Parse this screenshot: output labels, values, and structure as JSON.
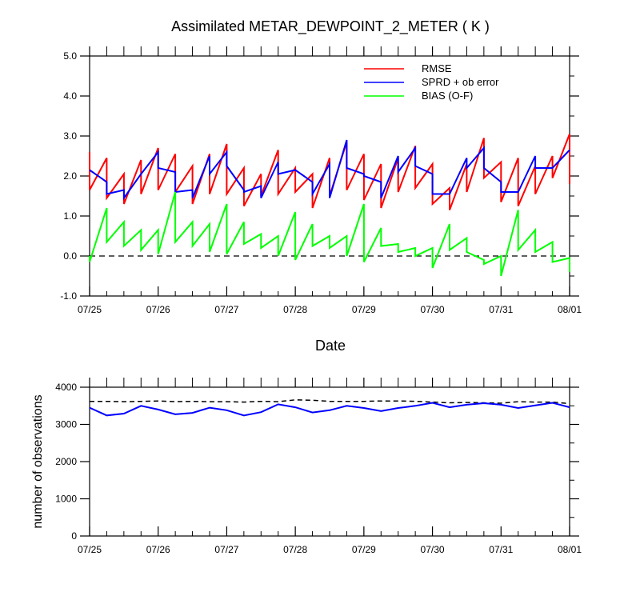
{
  "chart_data": [
    {
      "type": "line",
      "title": "Assimilated METAR_DEWPOINT_2_METER ( K )",
      "xlabel": "Date",
      "ylabel": "",
      "x_ticks": [
        "07/25",
        "07/26",
        "07/27",
        "07/28",
        "07/29",
        "07/30",
        "07/31",
        "08/01"
      ],
      "xlim": [
        0,
        7
      ],
      "ylim": [
        -1.0,
        5.0
      ],
      "y_ticks": [
        "-1.0",
        "0.0",
        "1.0",
        "2.0",
        "3.0",
        "4.0",
        "5.0"
      ],
      "legend_position": "top-right",
      "reference_line": 0.0,
      "x": [
        0.0,
        0.25,
        0.5,
        0.75,
        1.0,
        1.25,
        1.5,
        1.75,
        2.0,
        2.25,
        2.5,
        2.75,
        3.0,
        3.25,
        3.5,
        3.75,
        4.0,
        4.25,
        4.5,
        4.75,
        5.0,
        5.25,
        5.5,
        5.75,
        6.0,
        6.25,
        6.5,
        6.75,
        7.0
      ],
      "series": [
        {
          "name": "RMSE",
          "color": "#ff0000",
          "prior": [
            2.6,
            2.45,
            2.05,
            2.4,
            2.7,
            2.55,
            2.25,
            2.55,
            2.8,
            2.2,
            2.05,
            2.65,
            2.2,
            2.05,
            2.45,
            2.85,
            2.55,
            2.3,
            2.45,
            2.75,
            2.3,
            1.7,
            2.3,
            2.95,
            2.35,
            2.45,
            2.25,
            2.5,
            3.05
          ],
          "posterior": [
            1.65,
            1.45,
            1.3,
            1.55,
            1.65,
            1.6,
            1.3,
            1.55,
            1.55,
            1.25,
            1.5,
            1.55,
            1.6,
            1.2,
            1.5,
            1.65,
            1.4,
            1.2,
            1.6,
            1.7,
            1.3,
            1.15,
            1.6,
            1.95,
            1.35,
            1.25,
            1.55,
            1.95,
            1.8
          ]
        },
        {
          "name": "SPRD + ob error",
          "color": "#0000ff",
          "prior": [
            2.15,
            1.85,
            1.65,
            2.05,
            2.6,
            2.1,
            1.65,
            2.5,
            2.6,
            1.65,
            1.75,
            2.35,
            2.15,
            1.85,
            2.3,
            2.9,
            2.05,
            1.85,
            2.5,
            2.7,
            2.05,
            1.55,
            2.45,
            2.7,
            1.85,
            1.6,
            2.5,
            2.2,
            2.65
          ],
          "posterior": [
            2.15,
            1.55,
            1.45,
            2.05,
            2.2,
            1.6,
            1.45,
            2.05,
            2.25,
            1.6,
            1.45,
            2.05,
            2.15,
            1.55,
            1.45,
            2.2,
            2.0,
            1.45,
            2.1,
            2.25,
            1.55,
            1.55,
            2.2,
            2.2,
            1.6,
            1.6,
            2.2,
            2.2,
            2.65
          ]
        },
        {
          "name": "BIAS (O-F)",
          "color": "#00ff00",
          "prior": [
            0.0,
            1.2,
            0.85,
            0.65,
            0.65,
            1.6,
            0.85,
            0.8,
            1.3,
            0.85,
            0.55,
            0.5,
            1.1,
            0.8,
            0.5,
            0.5,
            1.3,
            0.7,
            0.3,
            0.2,
            0.2,
            0.8,
            0.45,
            -0.1,
            0.0,
            1.15,
            0.65,
            0.35,
            -0.05
          ],
          "posterior": [
            -0.15,
            0.35,
            0.25,
            0.15,
            0.05,
            0.35,
            0.25,
            0.1,
            0.05,
            0.3,
            0.2,
            0.0,
            -0.1,
            0.25,
            0.2,
            0.0,
            -0.15,
            0.25,
            0.1,
            0.0,
            -0.3,
            0.15,
            0.1,
            -0.2,
            -0.5,
            0.15,
            0.1,
            -0.15,
            -0.4
          ]
        }
      ]
    },
    {
      "type": "line",
      "title": "",
      "xlabel": "",
      "ylabel": "number of observations",
      "x_ticks": [
        "07/25",
        "07/26",
        "07/27",
        "07/28",
        "07/29",
        "07/30",
        "07/31",
        "08/01"
      ],
      "xlim": [
        0,
        7
      ],
      "ylim": [
        0,
        4000
      ],
      "y_ticks": [
        "0",
        "1000",
        "2000",
        "3000",
        "4000"
      ],
      "x": [
        0.0,
        0.25,
        0.5,
        0.75,
        1.0,
        1.25,
        1.5,
        1.75,
        2.0,
        2.25,
        2.5,
        2.75,
        3.0,
        3.25,
        3.5,
        3.75,
        4.0,
        4.25,
        4.5,
        4.75,
        5.0,
        5.25,
        5.5,
        5.75,
        6.0,
        6.25,
        6.5,
        6.75,
        7.0
      ],
      "series": [
        {
          "name": "",
          "color": "#000000",
          "style": "dashed",
          "values": [
            3620,
            3620,
            3610,
            3620,
            3630,
            3610,
            3620,
            3610,
            3610,
            3600,
            3620,
            3610,
            3660,
            3650,
            3620,
            3620,
            3620,
            3630,
            3630,
            3620,
            3600,
            3580,
            3590,
            3580,
            3570,
            3610,
            3600,
            3600,
            3560
          ]
        },
        {
          "name": "",
          "color": "#0000ff",
          "style": "solid",
          "values": [
            3450,
            3240,
            3290,
            3500,
            3400,
            3270,
            3310,
            3450,
            3380,
            3240,
            3330,
            3540,
            3460,
            3320,
            3380,
            3500,
            3440,
            3360,
            3440,
            3500,
            3580,
            3460,
            3530,
            3570,
            3530,
            3440,
            3510,
            3580,
            3460
          ]
        }
      ]
    }
  ]
}
